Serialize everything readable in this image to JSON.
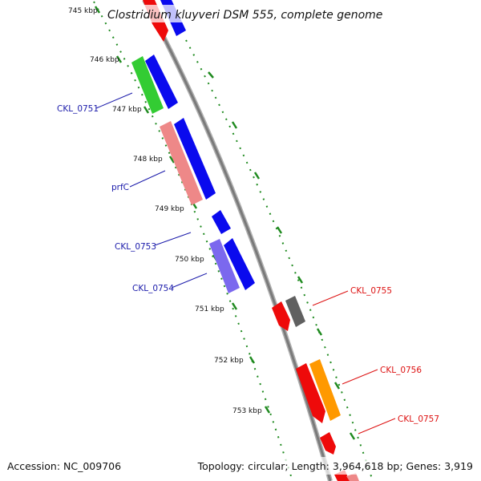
{
  "title": "Clostridium kluyveri DSM 555, complete genome",
  "accession": "Accession: NC_009706",
  "summary": "Topology: circular; Length: 3,964,618 bp; Genes: 3,919",
  "ticks": [
    "745 kbp",
    "746 kbp",
    "747 kbp",
    "748 kbp",
    "749 kbp",
    "750 kbp",
    "751 kbp",
    "752 kbp",
    "753 kbp"
  ],
  "labels": {
    "ckl_0751": "CKL_0751",
    "prfc": "prfC",
    "ckl_0753": "CKL_0753",
    "ckl_0754": "CKL_0754",
    "ckl_0755": "CKL_0755",
    "ckl_0756": "CKL_0756",
    "ckl_0757": "CKL_0757"
  },
  "colors": {
    "backbone": "#8c8c8c",
    "dotted_track": "#1f8a1f",
    "forward_cds": "#0a0aee",
    "reverse_cds": "#ee0a0a",
    "left_label": "#1a1aaa",
    "right_label": "#dd1111",
    "green_feature": "#33cc33",
    "pink_feature": "#ee8888",
    "purple_feature": "#7b68ee",
    "grey_feature": "#606060",
    "orange_feature": "#ff9900"
  }
}
